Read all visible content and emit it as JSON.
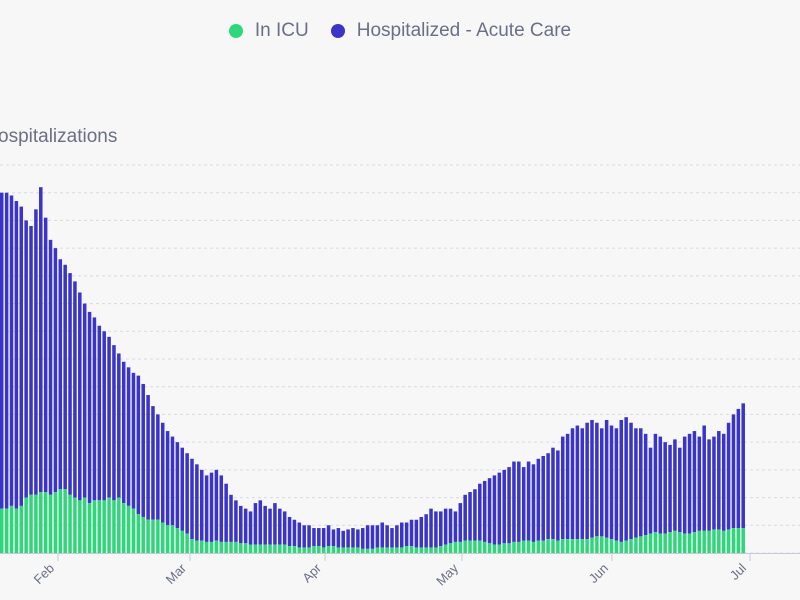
{
  "legend": {
    "items": [
      {
        "label": "In ICU",
        "color": "#2ed87a"
      },
      {
        "label": "Hospitalized - Acute Care",
        "color": "#3a35c8"
      }
    ]
  },
  "chart_data": {
    "type": "bar",
    "stacked": true,
    "ylabel": "ospitalizations",
    "ylim": [
      0,
      14
    ],
    "grid": true,
    "legend_position": "top",
    "x_tick_labels": [
      "Feb",
      "Mar",
      "Apr",
      "May",
      "Jun",
      "Jul"
    ],
    "series": [
      {
        "name": "In ICU",
        "color": "#2ed87a",
        "values": [
          1.6,
          1.6,
          1.7,
          1.6,
          1.7,
          2.0,
          2.1,
          2.1,
          2.2,
          2.2,
          2.1,
          2.2,
          2.3,
          2.3,
          2.1,
          2.0,
          1.9,
          2.0,
          1.8,
          1.9,
          1.9,
          1.9,
          2.0,
          1.9,
          2.0,
          1.8,
          1.7,
          1.6,
          1.4,
          1.3,
          1.2,
          1.2,
          1.2,
          1.1,
          1.0,
          1.0,
          0.9,
          0.8,
          0.7,
          0.5,
          0.45,
          0.45,
          0.4,
          0.4,
          0.45,
          0.4,
          0.4,
          0.4,
          0.4,
          0.35,
          0.35,
          0.3,
          0.3,
          0.3,
          0.3,
          0.3,
          0.3,
          0.3,
          0.3,
          0.25,
          0.25,
          0.2,
          0.2,
          0.2,
          0.25,
          0.25,
          0.2,
          0.25,
          0.25,
          0.2,
          0.2,
          0.2,
          0.2,
          0.2,
          0.15,
          0.15,
          0.15,
          0.2,
          0.2,
          0.2,
          0.2,
          0.2,
          0.2,
          0.25,
          0.25,
          0.2,
          0.2,
          0.2,
          0.2,
          0.2,
          0.25,
          0.3,
          0.35,
          0.4,
          0.4,
          0.45,
          0.45,
          0.45,
          0.45,
          0.4,
          0.35,
          0.3,
          0.3,
          0.35,
          0.35,
          0.4,
          0.4,
          0.45,
          0.45,
          0.4,
          0.45,
          0.45,
          0.5,
          0.5,
          0.45,
          0.5,
          0.5,
          0.5,
          0.5,
          0.5,
          0.5,
          0.55,
          0.6,
          0.6,
          0.55,
          0.5,
          0.45,
          0.4,
          0.45,
          0.5,
          0.55,
          0.6,
          0.65,
          0.7,
          0.75,
          0.7,
          0.7,
          0.75,
          0.8,
          0.75,
          0.7,
          0.7,
          0.75,
          0.8,
          0.8,
          0.8,
          0.85,
          0.85,
          0.8,
          0.85,
          0.9,
          0.9,
          0.9
        ],
        "totals": [
          13.0,
          13.0,
          12.9,
          12.7,
          12.5,
          12.0,
          11.8,
          12.4,
          13.2,
          12.1,
          11.3,
          11.0,
          10.6,
          10.4,
          10.1,
          9.8,
          9.4,
          9.0,
          8.7,
          8.5,
          8.2,
          8.0,
          7.8,
          7.5,
          7.2,
          6.9,
          6.7,
          6.5,
          6.4,
          6.1,
          5.7,
          5.3,
          5.0,
          4.7,
          4.4,
          4.2,
          4.0,
          3.8,
          3.6,
          3.4,
          3.2,
          3.0,
          2.8,
          2.9,
          3.0,
          2.8,
          2.5,
          2.1,
          1.9,
          1.7,
          1.6,
          1.5,
          1.8,
          1.9,
          1.7,
          1.6,
          1.8,
          1.6,
          1.5,
          1.3,
          1.2,
          1.1,
          1.0,
          1.0,
          0.9,
          0.9,
          0.9,
          1.0,
          0.85,
          0.9,
          0.8,
          0.85,
          0.9,
          0.85,
          0.9,
          1.0,
          1.0,
          1.0,
          1.1,
          1.0,
          0.9,
          1.0,
          1.1,
          1.1,
          1.2,
          1.2,
          1.3,
          1.4,
          1.6,
          1.5,
          1.5,
          1.6,
          1.6,
          1.5,
          1.8,
          2.1,
          2.2,
          2.3,
          2.5,
          2.6,
          2.7,
          2.8,
          2.9,
          3.0,
          3.1,
          3.3,
          3.3,
          3.1,
          3.3,
          3.2,
          3.4,
          3.5,
          3.6,
          3.8,
          3.7,
          4.2,
          4.3,
          4.5,
          4.6,
          4.5,
          4.7,
          4.8,
          4.7,
          4.5,
          4.8,
          4.6,
          4.5,
          4.8,
          4.9,
          4.7,
          4.5,
          4.5,
          4.3,
          3.8,
          4.3,
          4.2,
          4.0,
          3.9,
          4.1,
          3.8,
          4.2,
          4.3,
          4.4,
          4.2,
          4.6,
          4.1,
          4.2,
          4.4,
          4.3,
          4.7,
          5.0,
          5.2,
          5.4,
          5.6,
          5.5,
          5.8,
          5.9,
          5.7,
          5.9,
          6.0,
          6.0,
          5.7,
          5.9,
          6.0
        ]
      },
      {
        "name": "Hospitalized - Acute Care",
        "color": "#3a35c8"
      }
    ]
  }
}
